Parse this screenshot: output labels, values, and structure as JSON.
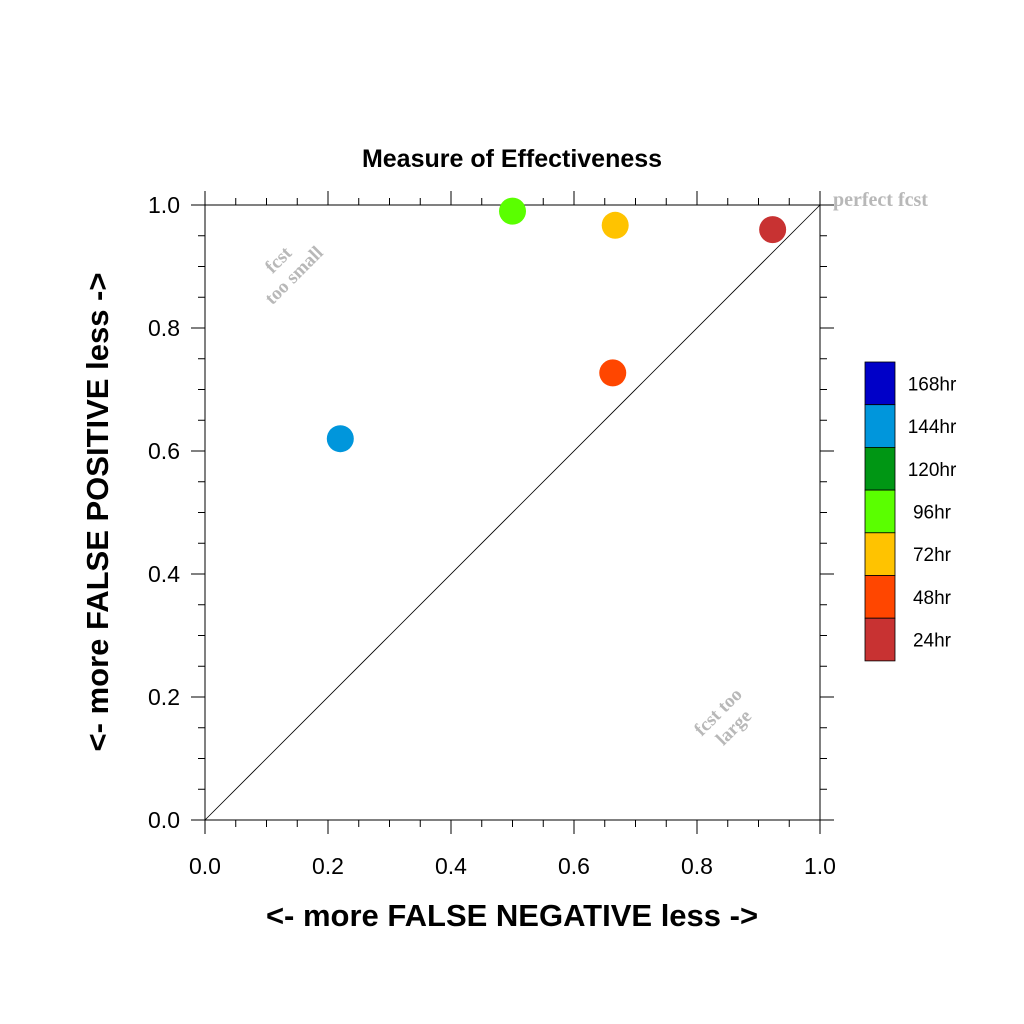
{
  "chart_data": {
    "type": "scatter",
    "title": "Measure of Effectiveness",
    "xlabel": "<- more   FALSE NEGATIVE   less ->",
    "ylabel": "<- more   FALSE POSITIVE   less ->",
    "xlim": [
      0.0,
      1.0
    ],
    "ylim": [
      0.0,
      1.0
    ],
    "xticks": [
      "0.0",
      "0.2",
      "0.4",
      "0.6",
      "0.8",
      "1.0"
    ],
    "yticks": [
      "0.0",
      "0.2",
      "0.4",
      "0.6",
      "0.8",
      "1.0"
    ],
    "grid": false,
    "diagonal_reference": true,
    "legend_position": "right",
    "annotations": {
      "perfect": "perfect fcst",
      "too_small": [
        "fcst",
        "too small"
      ],
      "too_large": [
        "fcst too",
        "large"
      ]
    },
    "legend": [
      {
        "label": "168hr",
        "color": "#0000c8"
      },
      {
        "label": "144hr",
        "color": "#0096dc"
      },
      {
        "label": "120hr",
        "color": "#009614"
      },
      {
        "label": "96hr",
        "color": "#5aff00"
      },
      {
        "label": "72hr",
        "color": "#ffc300"
      },
      {
        "label": "48hr",
        "color": "#ff4600"
      },
      {
        "label": "24hr",
        "color": "#c83232"
      }
    ],
    "points": [
      {
        "series": "144hr",
        "x": 0.22,
        "y": 0.62,
        "color": "#0096dc"
      },
      {
        "series": "96hr",
        "x": 0.5,
        "y": 0.99,
        "color": "#5aff00"
      },
      {
        "series": "72hr",
        "x": 0.667,
        "y": 0.967,
        "color": "#ffc300"
      },
      {
        "series": "48hr",
        "x": 0.663,
        "y": 0.727,
        "color": "#ff4600"
      },
      {
        "series": "24hr",
        "x": 0.923,
        "y": 0.96,
        "color": "#c83232"
      }
    ]
  }
}
